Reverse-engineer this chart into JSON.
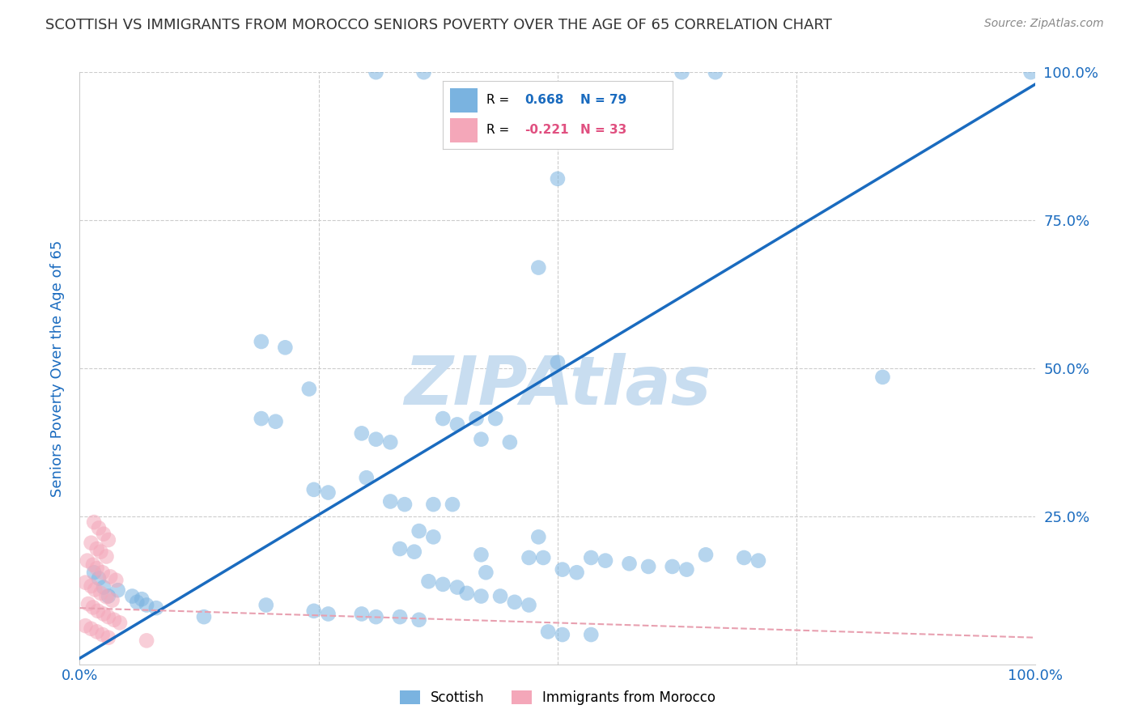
{
  "title": "SCOTTISH VS IMMIGRANTS FROM MOROCCO SENIORS POVERTY OVER THE AGE OF 65 CORRELATION CHART",
  "source": "Source: ZipAtlas.com",
  "ylabel": "Seniors Poverty Over the Age of 65",
  "xlim": [
    0,
    1.0
  ],
  "ylim": [
    0,
    1.0
  ],
  "scottish_color": "#7ab3e0",
  "morocco_color": "#f4a7b9",
  "scottish_R": 0.668,
  "scottish_N": 79,
  "morocco_R": -0.221,
  "morocco_N": 33,
  "trendline_blue_color": "#1a6bbf",
  "trendline_pink_color": "#e8a0b0",
  "watermark_color": "#c8ddf0",
  "title_color": "#333333",
  "axis_label_color": "#1a6bbf",
  "tick_color": "#1a6bbf",
  "grid_color": "#cccccc",
  "scottish_slope": 0.97,
  "scottish_intercept": 0.01,
  "morocco_slope": -0.05,
  "morocco_intercept": 0.095,
  "scottish_points": [
    [
      0.31,
      1.0
    ],
    [
      0.36,
      1.0
    ],
    [
      0.63,
      1.0
    ],
    [
      0.665,
      1.0
    ],
    [
      0.995,
      1.0
    ],
    [
      0.5,
      0.82
    ],
    [
      0.48,
      0.67
    ],
    [
      0.5,
      0.51
    ],
    [
      0.19,
      0.545
    ],
    [
      0.215,
      0.535
    ],
    [
      0.24,
      0.465
    ],
    [
      0.19,
      0.415
    ],
    [
      0.205,
      0.41
    ],
    [
      0.295,
      0.39
    ],
    [
      0.31,
      0.38
    ],
    [
      0.325,
      0.375
    ],
    [
      0.38,
      0.415
    ],
    [
      0.395,
      0.405
    ],
    [
      0.415,
      0.415
    ],
    [
      0.435,
      0.415
    ],
    [
      0.42,
      0.38
    ],
    [
      0.45,
      0.375
    ],
    [
      0.3,
      0.315
    ],
    [
      0.245,
      0.295
    ],
    [
      0.26,
      0.29
    ],
    [
      0.325,
      0.275
    ],
    [
      0.34,
      0.27
    ],
    [
      0.37,
      0.27
    ],
    [
      0.39,
      0.27
    ],
    [
      0.48,
      0.215
    ],
    [
      0.355,
      0.225
    ],
    [
      0.37,
      0.215
    ],
    [
      0.335,
      0.195
    ],
    [
      0.35,
      0.19
    ],
    [
      0.42,
      0.185
    ],
    [
      0.47,
      0.18
    ],
    [
      0.485,
      0.18
    ],
    [
      0.535,
      0.18
    ],
    [
      0.55,
      0.175
    ],
    [
      0.655,
      0.185
    ],
    [
      0.695,
      0.18
    ],
    [
      0.71,
      0.175
    ],
    [
      0.575,
      0.17
    ],
    [
      0.595,
      0.165
    ],
    [
      0.62,
      0.165
    ],
    [
      0.635,
      0.16
    ],
    [
      0.505,
      0.16
    ],
    [
      0.52,
      0.155
    ],
    [
      0.425,
      0.155
    ],
    [
      0.365,
      0.14
    ],
    [
      0.38,
      0.135
    ],
    [
      0.395,
      0.13
    ],
    [
      0.405,
      0.12
    ],
    [
      0.42,
      0.115
    ],
    [
      0.44,
      0.115
    ],
    [
      0.455,
      0.105
    ],
    [
      0.47,
      0.1
    ],
    [
      0.195,
      0.1
    ],
    [
      0.245,
      0.09
    ],
    [
      0.26,
      0.085
    ],
    [
      0.295,
      0.085
    ],
    [
      0.31,
      0.08
    ],
    [
      0.335,
      0.08
    ],
    [
      0.355,
      0.075
    ],
    [
      0.13,
      0.08
    ],
    [
      0.07,
      0.1
    ],
    [
      0.08,
      0.095
    ],
    [
      0.06,
      0.105
    ],
    [
      0.055,
      0.115
    ],
    [
      0.065,
      0.11
    ],
    [
      0.04,
      0.125
    ],
    [
      0.03,
      0.115
    ],
    [
      0.025,
      0.13
    ],
    [
      0.02,
      0.145
    ],
    [
      0.015,
      0.155
    ],
    [
      0.49,
      0.055
    ],
    [
      0.505,
      0.05
    ],
    [
      0.535,
      0.05
    ],
    [
      0.84,
      0.485
    ]
  ],
  "morocco_points": [
    [
      0.015,
      0.24
    ],
    [
      0.02,
      0.23
    ],
    [
      0.025,
      0.22
    ],
    [
      0.03,
      0.21
    ],
    [
      0.012,
      0.205
    ],
    [
      0.018,
      0.195
    ],
    [
      0.022,
      0.19
    ],
    [
      0.028,
      0.182
    ],
    [
      0.008,
      0.175
    ],
    [
      0.014,
      0.168
    ],
    [
      0.018,
      0.162
    ],
    [
      0.024,
      0.155
    ],
    [
      0.032,
      0.148
    ],
    [
      0.038,
      0.142
    ],
    [
      0.006,
      0.138
    ],
    [
      0.012,
      0.132
    ],
    [
      0.016,
      0.126
    ],
    [
      0.022,
      0.12
    ],
    [
      0.028,
      0.114
    ],
    [
      0.034,
      0.108
    ],
    [
      0.009,
      0.102
    ],
    [
      0.014,
      0.096
    ],
    [
      0.019,
      0.09
    ],
    [
      0.025,
      0.085
    ],
    [
      0.03,
      0.08
    ],
    [
      0.036,
      0.075
    ],
    [
      0.042,
      0.07
    ],
    [
      0.006,
      0.065
    ],
    [
      0.012,
      0.06
    ],
    [
      0.018,
      0.055
    ],
    [
      0.024,
      0.05
    ],
    [
      0.03,
      0.045
    ],
    [
      0.07,
      0.04
    ]
  ]
}
